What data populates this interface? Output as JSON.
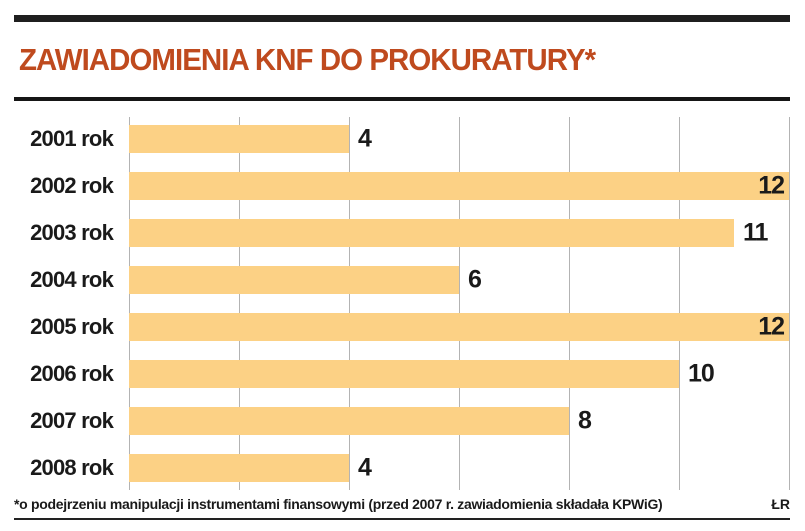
{
  "header": {
    "title": "ZAWIADOMIENIA KNF DO PROKURATURY*"
  },
  "footer": {
    "footnote": "*o podejrzeniu manipulacji instrumentami finansowymi (przed 2007 r. zawiadomienia składała KPWiG)",
    "credit": "ŁR"
  },
  "colors": {
    "bar": "#fcd185",
    "title": "#bf4a1e",
    "gridline": "#b3b3b3",
    "text": "#1a1a1a",
    "rule": "#1f1f1f"
  },
  "chart_data": {
    "type": "bar",
    "orientation": "horizontal",
    "title": "ZAWIADOMIENIA KNF DO PROKURATURY*",
    "categories": [
      "2001 rok",
      "2002 rok",
      "2003 rok",
      "2004 rok",
      "2005 rok",
      "2006 rok",
      "2007 rok",
      "2008 rok"
    ],
    "values": [
      4,
      12,
      11,
      6,
      12,
      10,
      8,
      4
    ],
    "xlabel": "",
    "ylabel": "",
    "xlim": [
      0,
      12
    ],
    "gridline_interval": 2,
    "grid": true,
    "legend_position": "none",
    "value_labels": true
  }
}
